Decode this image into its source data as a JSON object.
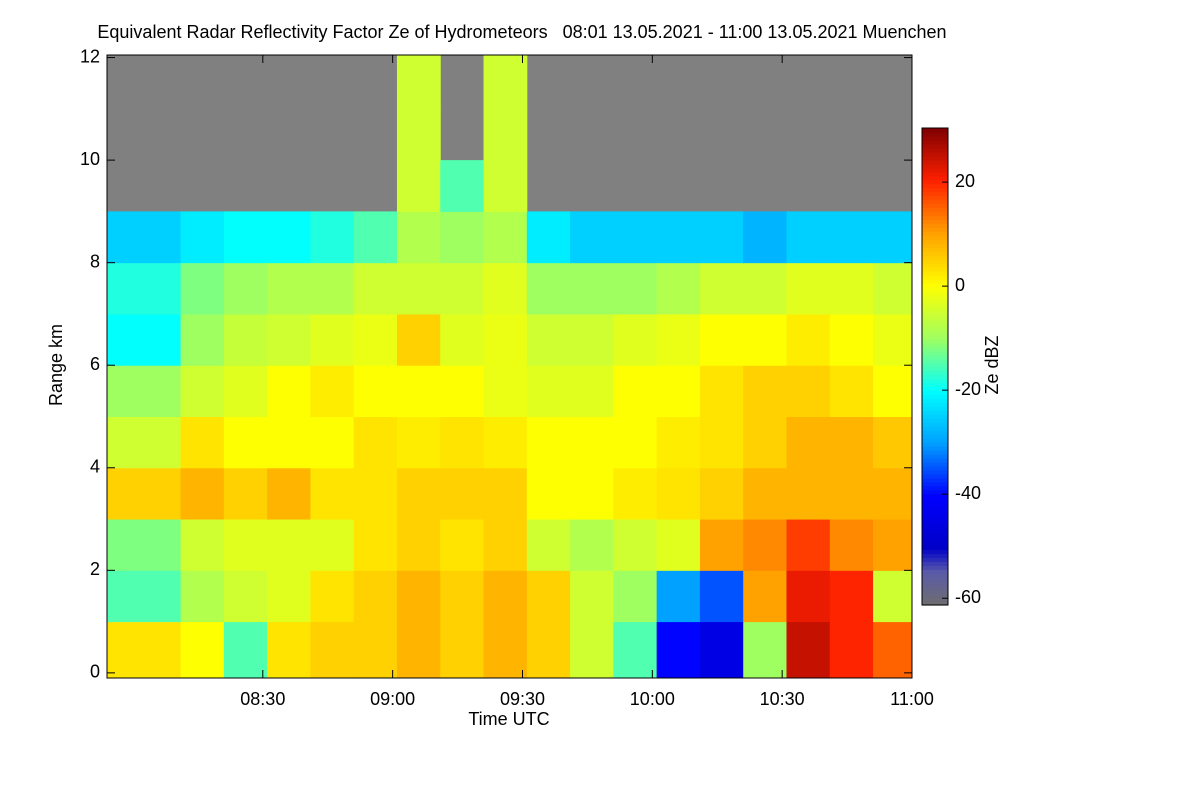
{
  "chart_data": {
    "type": "heatmap",
    "title": "Equivalent Radar Reflectivity Factor Ze of Hydrometeors   08:01 13.05.2021 - 11:00 13.05.2021 Muenchen",
    "x_label": "Time UTC",
    "y_label": "Range km",
    "colorbar_label": "Ze dBZ",
    "x": [
      486,
      496,
      506,
      516,
      526,
      536,
      546,
      556,
      566,
      576,
      586,
      596,
      606,
      616,
      626,
      636,
      646,
      656
    ],
    "y": [
      0.5,
      1.5,
      2.5,
      3.5,
      4.5,
      5.5,
      6.5,
      7.5,
      8.5,
      9.5,
      10.5,
      11.5
    ],
    "z": [
      [
        3,
        0,
        -15,
        3,
        5,
        5,
        8,
        5,
        8,
        5,
        -5,
        -15,
        -40,
        -45,
        -10,
        25,
        20,
        15
      ],
      [
        -15,
        -8,
        -5,
        -3,
        3,
        5,
        8,
        5,
        8,
        5,
        -5,
        -10,
        -30,
        -35,
        10,
        22,
        20,
        -5
      ],
      [
        -12,
        -5,
        -3,
        -3,
        -3,
        3,
        5,
        3,
        5,
        -5,
        -8,
        -5,
        -3,
        10,
        12,
        18,
        12,
        10
      ],
      [
        5,
        8,
        5,
        8,
        3,
        3,
        5,
        5,
        5,
        0,
        0,
        2,
        3,
        5,
        8,
        8,
        8,
        8
      ],
      [
        -5,
        3,
        0,
        0,
        0,
        3,
        2,
        3,
        2,
        0,
        0,
        0,
        2,
        3,
        5,
        8,
        8,
        6
      ],
      [
        -10,
        -5,
        -3,
        0,
        2,
        0,
        0,
        0,
        -2,
        -3,
        -3,
        0,
        0,
        3,
        5,
        5,
        3,
        0
      ],
      [
        -20,
        -10,
        -6,
        -5,
        -3,
        -2,
        5,
        -3,
        -2,
        -5,
        -5,
        -3,
        -2,
        0,
        0,
        2,
        0,
        -2
      ],
      [
        -18,
        -12,
        -10,
        -8,
        -8,
        -5,
        -5,
        -5,
        -3,
        -10,
        -10,
        -10,
        -8,
        -5,
        -5,
        -3,
        -3,
        -5
      ],
      [
        -25,
        -22,
        -20,
        -20,
        -18,
        -15,
        -8,
        -10,
        -8,
        -22,
        -25,
        -25,
        -25,
        -25,
        -28,
        -25,
        -25,
        -25
      ],
      [
        null,
        null,
        null,
        null,
        null,
        null,
        -5,
        -15,
        -5,
        null,
        null,
        null,
        null,
        null,
        null,
        null,
        null,
        null
      ],
      [
        null,
        null,
        null,
        null,
        null,
        null,
        -5,
        null,
        -5,
        null,
        null,
        null,
        null,
        null,
        null,
        null,
        null,
        null
      ],
      [
        null,
        null,
        null,
        null,
        null,
        null,
        -5,
        null,
        -5,
        null,
        null,
        null,
        null,
        null,
        null,
        null,
        null,
        null
      ]
    ],
    "xlim": [
      474,
      660
    ],
    "ylim": [
      -0.1,
      12.05
    ],
    "clim": [
      -61.3,
      30.4
    ],
    "xticks": [
      {
        "value": 510,
        "label": "08:30"
      },
      {
        "value": 540,
        "label": "09:00"
      },
      {
        "value": 570,
        "label": "09:30"
      },
      {
        "value": 600,
        "label": "10:00"
      },
      {
        "value": 630,
        "label": "10:30"
      },
      {
        "value": 660,
        "label": "11:00"
      }
    ],
    "yticks": [
      0,
      2,
      4,
      6,
      8,
      10,
      12
    ],
    "cticks": [
      -60,
      -40,
      -20,
      0,
      20
    ],
    "missing_color": "#808080"
  }
}
